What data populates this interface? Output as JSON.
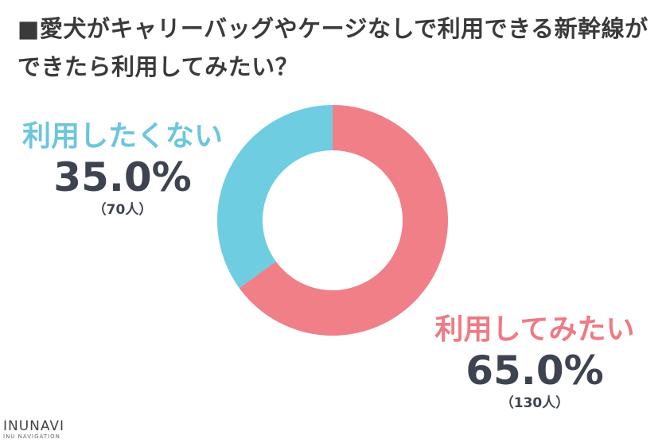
{
  "title": "■愛犬がキャリーバッグやケージなしで利用できる新幹線ができたら利用してみたい？",
  "logo": {
    "brand": "INUNAVI",
    "sub": "INU NAVIGATION"
  },
  "colors": {
    "yes": "#f07f87",
    "no": "#6fcde2"
  },
  "chart_data": {
    "type": "pie",
    "variant": "donut",
    "title": "■愛犬がキャリーバッグやケージなしで利用できる新幹線ができたら利用してみたい？",
    "slices": [
      {
        "label": "利用してみたい",
        "value": 65.0,
        "percent_label": "65.0%",
        "count": 130,
        "count_label": "（130人）",
        "color": "#f07f87"
      },
      {
        "label": "利用したくない",
        "value": 35.0,
        "percent_label": "35.0%",
        "count": 70,
        "count_label": "（70人）",
        "color": "#6fcde2"
      }
    ],
    "start_angle_deg": 0,
    "direction": "clockwise",
    "legend": "none"
  }
}
